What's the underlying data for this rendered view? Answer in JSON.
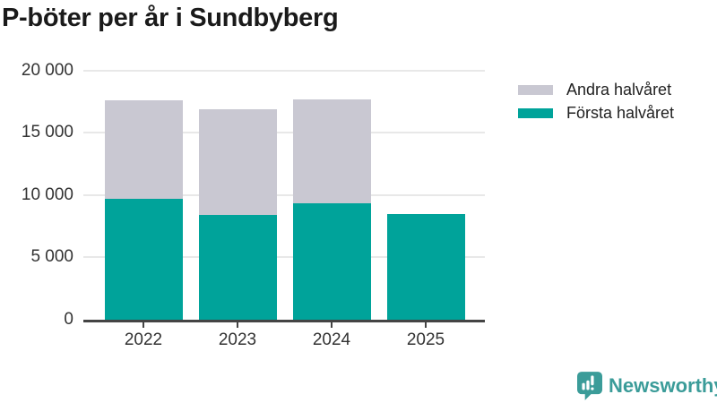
{
  "title": "P-böter per år i Sundbyberg",
  "chart_data": {
    "type": "bar",
    "stacked": true,
    "title": "P-böter per år i Sundbyberg",
    "categories": [
      "2022",
      "2023",
      "2024",
      "2025"
    ],
    "series": [
      {
        "name": "Första halvåret",
        "color": "#00a39a",
        "values": [
          9700,
          8400,
          9300,
          8450
        ]
      },
      {
        "name": "Andra halvåret",
        "color": "#c9c8d2",
        "values": [
          7900,
          8450,
          8400,
          0
        ]
      }
    ],
    "xlabel": "",
    "ylabel": "",
    "ylim": [
      0,
      20000
    ],
    "yticks": [
      {
        "value": 0,
        "label": "0"
      },
      {
        "value": 5000,
        "label": "5 000"
      },
      {
        "value": 10000,
        "label": "10 000"
      },
      {
        "value": 15000,
        "label": "15 000"
      },
      {
        "value": 20000,
        "label": "20 000"
      }
    ],
    "grid": true,
    "legend_position": "top-right"
  },
  "legend": {
    "items": [
      {
        "label": "Andra halvåret",
        "color": "#c9c8d2"
      },
      {
        "label": "Första halvåret",
        "color": "#00a39a"
      }
    ]
  },
  "branding": {
    "name": "Newsworthy",
    "color": "#3b9c99",
    "icon": "newsworthy-speech-bubble-bar-chart-icon"
  },
  "colors": {
    "background": "#ffffff",
    "title": "#1a1a1a",
    "axis": "#444444",
    "tick_label": "#333333",
    "gridline": "#e8e8e8",
    "first_half": "#00a39a",
    "second_half": "#c9c8d2"
  }
}
